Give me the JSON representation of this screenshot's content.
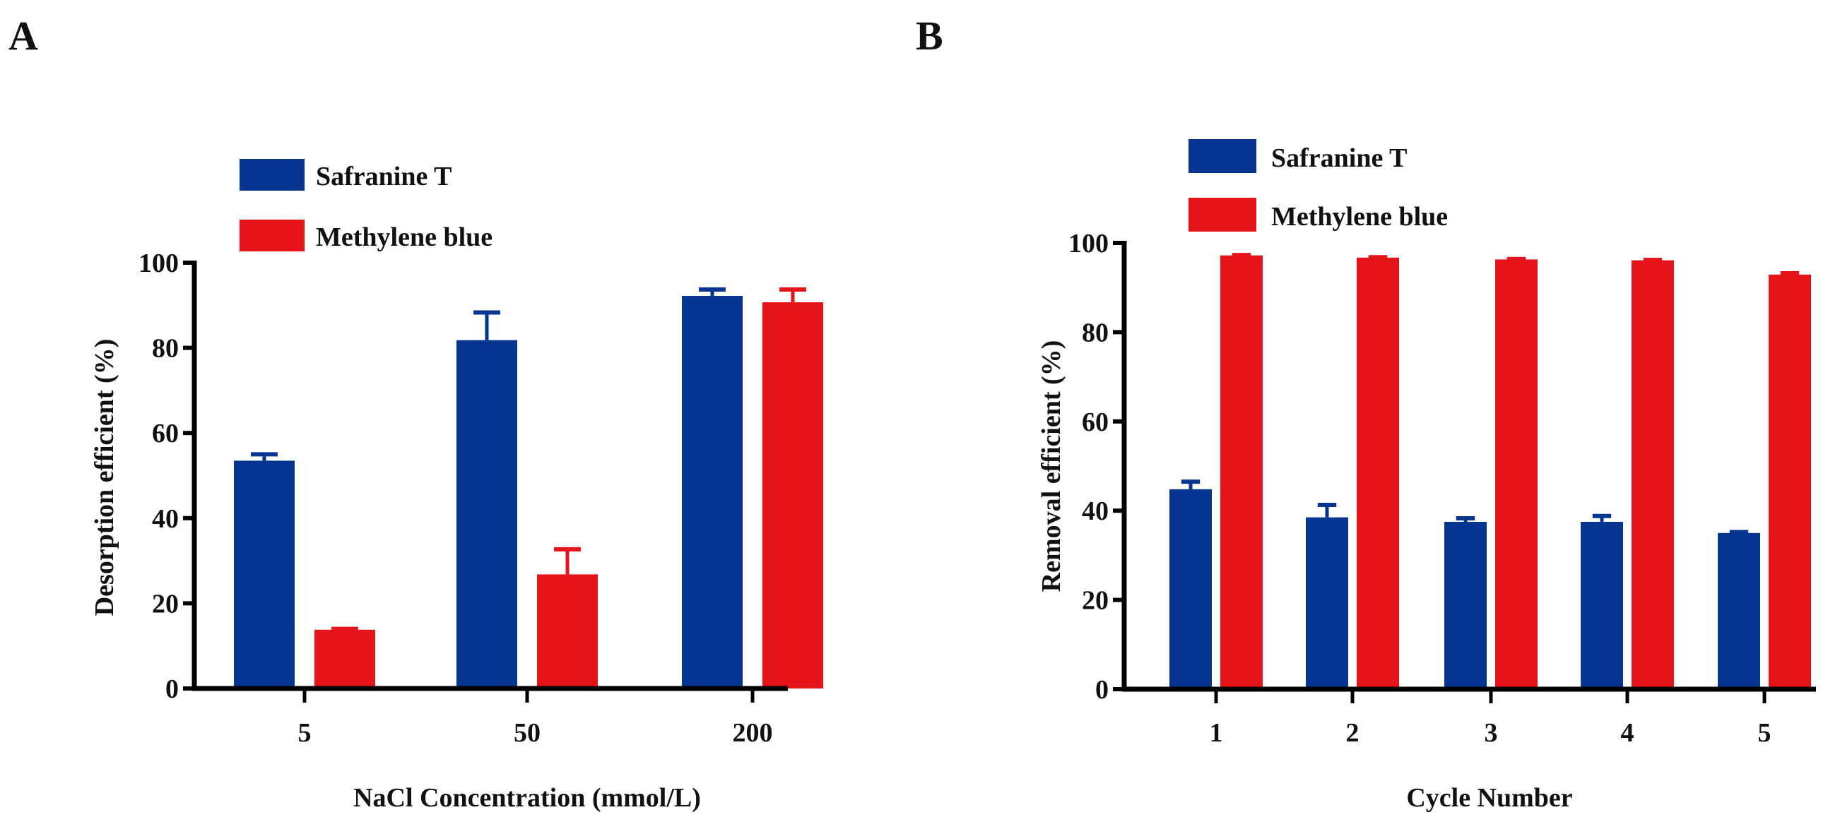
{
  "panels": {
    "A": {
      "label": "A"
    },
    "B": {
      "label": "B"
    }
  },
  "colors": {
    "safranine": "#063591",
    "methylene": "#e5141b",
    "axis": "#000000"
  },
  "chart_data": [
    {
      "type": "bar",
      "panel": "A",
      "title": "",
      "xlabel": "NaCl Concentration (mmol/L)",
      "ylabel": "Desorption efficient (%)",
      "categories": [
        "5",
        "50",
        "200"
      ],
      "ylim": [
        0,
        100
      ],
      "yticks": [
        "0",
        "20",
        "40",
        "60",
        "80",
        "100"
      ],
      "grid": false,
      "legend_position": "top-left",
      "series": [
        {
          "name": "Safranine T",
          "values": [
            53.5,
            81.8,
            92.2
          ],
          "errors": [
            1.5,
            6.5,
            1.5
          ]
        },
        {
          "name": "Methylene blue",
          "values": [
            13.8,
            26.8,
            90.7
          ],
          "errors": [
            0.2,
            5.9,
            3.0
          ]
        }
      ]
    },
    {
      "type": "bar",
      "panel": "B",
      "title": "",
      "xlabel": "Cycle Number",
      "ylabel": "Removal efficient (%)",
      "categories": [
        "1",
        "2",
        "3",
        "4",
        "5"
      ],
      "ylim": [
        0,
        100
      ],
      "yticks": [
        "0",
        "20",
        "40",
        "60",
        "80",
        "100"
      ],
      "grid": false,
      "legend_position": "top-left",
      "series": [
        {
          "name": "Safranine T",
          "values": [
            44.8,
            38.5,
            37.5,
            37.5,
            35.0
          ],
          "errors": [
            1.7,
            2.8,
            0.8,
            1.3,
            0.2
          ]
        },
        {
          "name": "Methylene blue",
          "values": [
            97.2,
            96.7,
            96.3,
            96.1,
            92.9
          ],
          "errors": [
            0.1,
            0.1,
            0.1,
            0.1,
            0.3
          ]
        }
      ]
    }
  ]
}
